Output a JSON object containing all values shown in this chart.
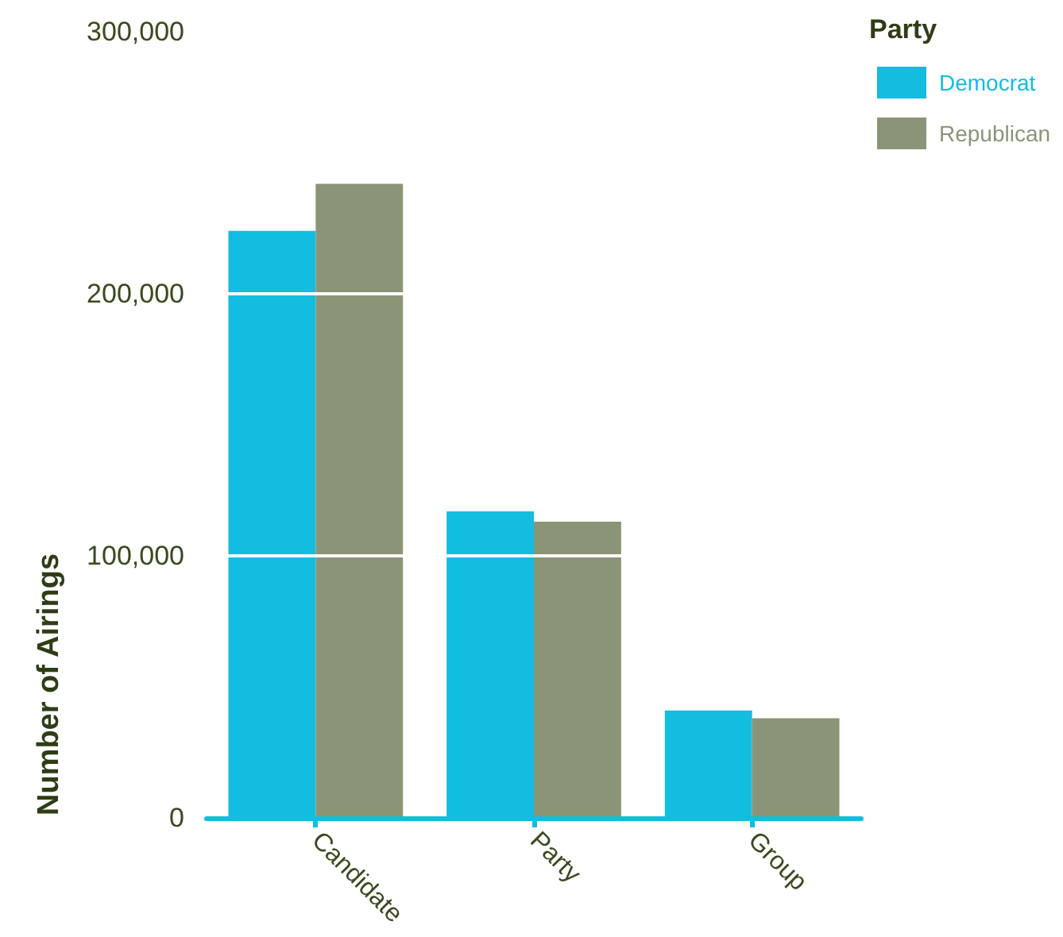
{
  "chart_data": {
    "type": "bar",
    "ylabel": "Number of Airings",
    "legend_title": "Party",
    "categories": [
      "Candidate",
      "Party",
      "Group"
    ],
    "series": [
      {
        "name": "Democrat",
        "color": "#12bde0",
        "values": [
          224000,
          117000,
          41000
        ]
      },
      {
        "name": "Republican",
        "color": "#8a9577",
        "values": [
          242000,
          113000,
          38000
        ]
      }
    ],
    "ylim": [
      0,
      300000
    ],
    "yticks": [
      0,
      {
        "value": 100000,
        "label": "100,000"
      },
      {
        "value": 200000,
        "label": "200,000"
      },
      {
        "value": 300000,
        "label": "300,000"
      }
    ],
    "grid": "y",
    "legend": "top right"
  }
}
